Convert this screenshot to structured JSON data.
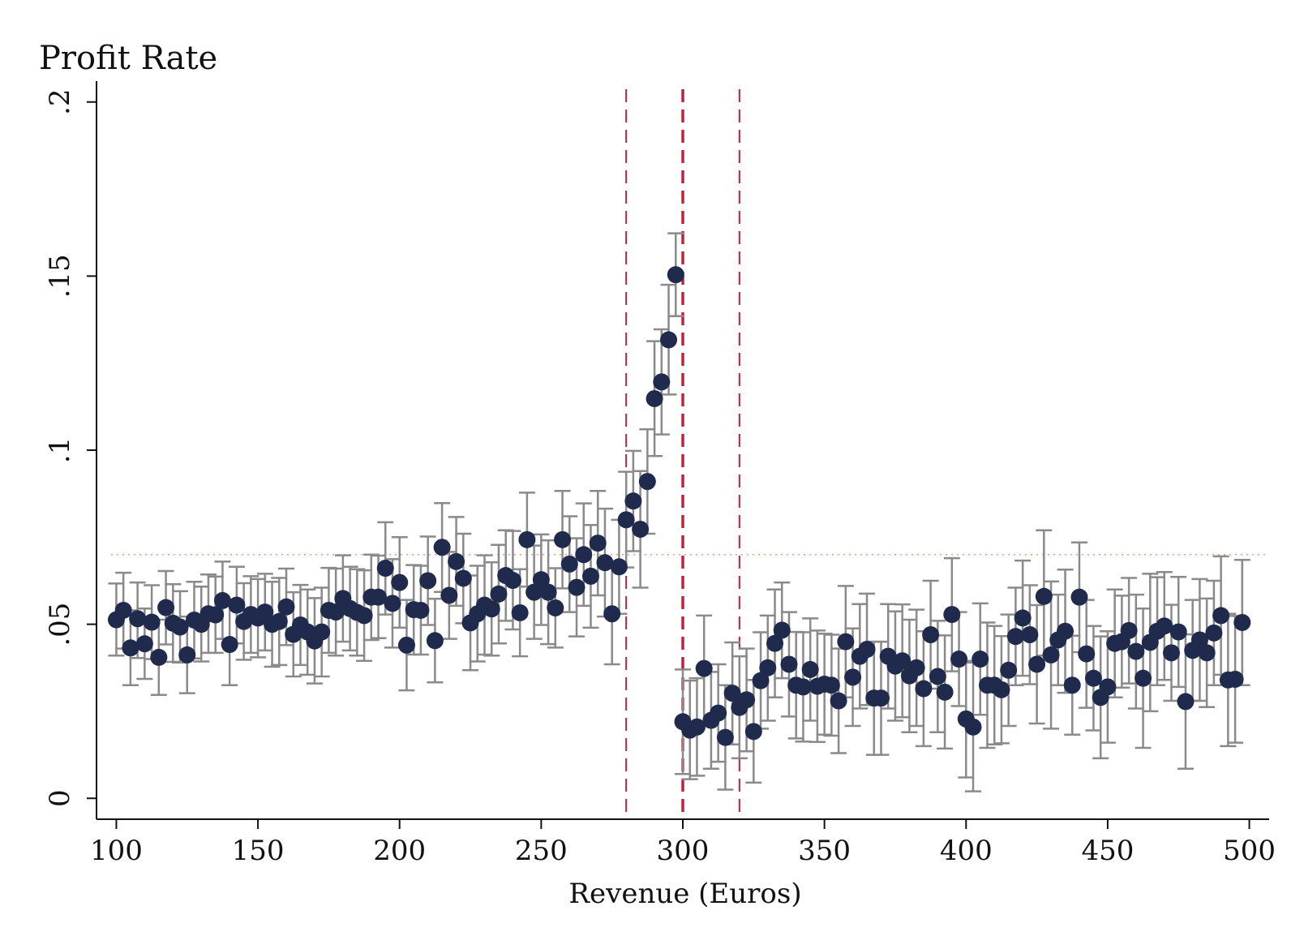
{
  "chart_data": {
    "type": "scatter",
    "title": "Profit Rate",
    "xlabel": "Revenue (Euros)",
    "ylabel": "",
    "xlim": [
      93,
      507
    ],
    "ylim": [
      -0.006,
      0.206
    ],
    "xticks": [
      100,
      150,
      200,
      250,
      300,
      350,
      400,
      450,
      500
    ],
    "xtick_labels": [
      "100",
      "150",
      "200",
      "250",
      "300",
      "350",
      "400",
      "450",
      "500"
    ],
    "yticks": [
      0,
      0.05,
      0.1,
      0.15,
      0.2
    ],
    "ytick_labels": [
      "0",
      ".05",
      ".1",
      ".15",
      ".2"
    ],
    "vertical_lines": [
      {
        "x": 280,
        "style": "dashed",
        "color": "#c0223b",
        "weight": "thin"
      },
      {
        "x": 300,
        "style": "dashed",
        "color": "#c0223b",
        "weight": "thick"
      },
      {
        "x": 320,
        "style": "dashed",
        "color": "#c0223b",
        "weight": "thin"
      }
    ],
    "reference_line": {
      "y": 0.07,
      "style": "dotted",
      "color": "#e8a07a"
    },
    "colors": {
      "points": "#1f2a4c",
      "error_bars": "#8a8a8a"
    },
    "series": [
      {
        "name": "Profit Rate",
        "x": [
          100,
          102.5,
          105,
          107.5,
          110,
          112.5,
          115,
          117.5,
          120,
          122.5,
          125,
          127.5,
          130,
          132.5,
          135,
          137.5,
          140,
          142.5,
          145,
          147.5,
          150,
          152.5,
          155,
          157.5,
          160,
          162.5,
          165,
          167.5,
          170,
          172.5,
          175,
          177.5,
          180,
          182.5,
          185,
          187.5,
          190,
          192.5,
          195,
          197.5,
          200,
          202.5,
          205,
          207.5,
          210,
          212.5,
          215,
          217.5,
          220,
          222.5,
          225,
          227.5,
          230,
          232.5,
          235,
          237.5,
          240,
          242.5,
          245,
          247.5,
          250,
          252.5,
          255,
          257.5,
          260,
          262.5,
          265,
          267.5,
          270,
          272.5,
          275,
          277.5,
          280,
          282.5,
          285,
          287.5,
          290,
          292.5,
          295,
          297.5,
          300,
          302.5,
          305,
          307.5,
          310,
          312.5,
          315,
          317.5,
          320,
          322.5,
          325,
          327.5,
          330,
          332.5,
          335,
          337.5,
          340,
          342.5,
          345,
          347.5,
          350,
          352.5,
          355,
          357.5,
          360,
          362.5,
          365,
          367.5,
          370,
          372.5,
          375,
          377.5,
          380,
          382.5,
          385,
          387.5,
          390,
          392.5,
          395,
          397.5,
          400,
          402.5,
          405,
          407.5,
          410,
          412.5,
          415,
          417.5,
          420,
          422.5,
          425,
          427.5,
          430,
          432.5,
          435,
          437.5,
          440,
          442.5,
          445,
          447.5,
          450,
          452.5,
          455,
          457.5,
          460,
          462.5,
          465,
          467.5,
          470,
          472.5,
          475,
          477.5,
          480,
          482.5,
          485,
          487.5,
          490,
          492.5,
          495,
          497.5
        ],
        "y": [
          0.0513,
          0.054,
          0.0432,
          0.0516,
          0.0444,
          0.0506,
          0.0405,
          0.0548,
          0.0503,
          0.0492,
          0.0412,
          0.0512,
          0.05,
          0.053,
          0.0527,
          0.0568,
          0.0442,
          0.0555,
          0.0508,
          0.0528,
          0.0518,
          0.0535,
          0.05,
          0.0508,
          0.055,
          0.0471,
          0.0498,
          0.0478,
          0.0452,
          0.0478,
          0.054,
          0.0535,
          0.0574,
          0.0545,
          0.0534,
          0.0525,
          0.0578,
          0.0578,
          0.0661,
          0.056,
          0.062,
          0.044,
          0.0542,
          0.054,
          0.0625,
          0.0453,
          0.0721,
          0.0583,
          0.068,
          0.0632,
          0.0504,
          0.053,
          0.0555,
          0.0544,
          0.0587,
          0.064,
          0.0626,
          0.0533,
          0.0743,
          0.0592,
          0.0628,
          0.0592,
          0.0547,
          0.0743,
          0.0673,
          0.0606,
          0.07,
          0.0638,
          0.0733,
          0.0677,
          0.053,
          0.0665,
          0.08,
          0.0854,
          0.0773,
          0.091,
          0.1148,
          0.1196,
          0.1317,
          0.1504,
          0.022,
          0.0196,
          0.0205,
          0.0373,
          0.0224,
          0.0245,
          0.0175,
          0.0302,
          0.0261,
          0.0283,
          0.0192,
          0.0338,
          0.0375,
          0.0445,
          0.0483,
          0.0385,
          0.0325,
          0.032,
          0.037,
          0.0322,
          0.0328,
          0.0325,
          0.028,
          0.045,
          0.0348,
          0.0408,
          0.0428,
          0.0288,
          0.0288,
          0.0408,
          0.038,
          0.0395,
          0.0352,
          0.0375,
          0.0315,
          0.047,
          0.035,
          0.0305,
          0.0528,
          0.04,
          0.0228,
          0.0205,
          0.04,
          0.0325,
          0.0325,
          0.0312,
          0.0368,
          0.0465,
          0.0518,
          0.047,
          0.0385,
          0.058,
          0.0412,
          0.0455,
          0.048,
          0.0325,
          0.0578,
          0.0415,
          0.0345,
          0.029,
          0.032,
          0.0445,
          0.045,
          0.0482,
          0.0422,
          0.0345,
          0.0448,
          0.048,
          0.0495,
          0.0418,
          0.0478,
          0.0278,
          0.0425,
          0.0455,
          0.0418,
          0.0475,
          0.0525,
          0.034,
          0.0342,
          0.0505
        ],
        "err_low": [
          0.041,
          0.043,
          0.0325,
          0.0403,
          0.0343,
          0.04,
          0.0297,
          0.0442,
          0.0392,
          0.039,
          0.0302,
          0.0402,
          0.0393,
          0.0418,
          0.0418,
          0.0458,
          0.0325,
          0.0445,
          0.0398,
          0.0418,
          0.0405,
          0.0425,
          0.0378,
          0.0383,
          0.044,
          0.035,
          0.0383,
          0.0355,
          0.033,
          0.035,
          0.0418,
          0.041,
          0.045,
          0.0425,
          0.041,
          0.0395,
          0.0455,
          0.046,
          0.0528,
          0.0433,
          0.049,
          0.031,
          0.0413,
          0.0413,
          0.0498,
          0.0333,
          0.0593,
          0.0458,
          0.0553,
          0.0503,
          0.0368,
          0.0393,
          0.0413,
          0.041,
          0.0445,
          0.051,
          0.0485,
          0.0408,
          0.0608,
          0.0458,
          0.0498,
          0.0443,
          0.0433,
          0.0603,
          0.0535,
          0.0465,
          0.0553,
          0.049,
          0.0583,
          0.0522,
          0.0385,
          0.053,
          0.0663,
          0.071,
          0.0605,
          0.076,
          0.0983,
          0.1045,
          0.116,
          0.1385,
          0.007,
          0.0055,
          0.0065,
          0.022,
          0.0085,
          0.0105,
          0.0025,
          0.0155,
          0.0115,
          0.0135,
          0.0045,
          0.02,
          0.0223,
          0.029,
          0.0345,
          0.0235,
          0.0172,
          0.0163,
          0.0223,
          0.0162,
          0.0183,
          0.018,
          0.013,
          0.029,
          0.0208,
          0.0258,
          0.0268,
          0.0125,
          0.0125,
          0.0258,
          0.0223,
          0.0233,
          0.019,
          0.0208,
          0.015,
          0.0315,
          0.019,
          0.0143,
          0.0365,
          0.0265,
          0.006,
          0.002,
          0.024,
          0.0145,
          0.0155,
          0.0158,
          0.0208,
          0.0325,
          0.0352,
          0.0328,
          0.0215,
          0.041,
          0.02,
          0.0325,
          0.0303,
          0.0183,
          0.042,
          0.026,
          0.0195,
          0.0115,
          0.016,
          0.029,
          0.0318,
          0.033,
          0.0258,
          0.0145,
          0.025,
          0.0325,
          0.034,
          0.028,
          0.032,
          0.0085,
          0.028,
          0.028,
          0.0262,
          0.0325,
          0.0355,
          0.015,
          0.016,
          0.0325
        ],
        "err_high": [
          0.0617,
          0.0648,
          0.054,
          0.062,
          0.0545,
          0.0612,
          0.0513,
          0.0653,
          0.0615,
          0.0595,
          0.0522,
          0.0622,
          0.0608,
          0.0643,
          0.0637,
          0.068,
          0.056,
          0.0665,
          0.0618,
          0.0638,
          0.063,
          0.0645,
          0.0622,
          0.0633,
          0.066,
          0.0592,
          0.0613,
          0.06,
          0.0575,
          0.0605,
          0.0662,
          0.066,
          0.0698,
          0.0665,
          0.0658,
          0.0655,
          0.07,
          0.0697,
          0.0793,
          0.0687,
          0.075,
          0.057,
          0.067,
          0.0668,
          0.0752,
          0.0573,
          0.0848,
          0.0708,
          0.0808,
          0.076,
          0.064,
          0.0668,
          0.0698,
          0.0678,
          0.0728,
          0.077,
          0.0768,
          0.0658,
          0.0878,
          0.0726,
          0.0758,
          0.0741,
          0.0661,
          0.0883,
          0.081,
          0.0747,
          0.0847,
          0.0785,
          0.0883,
          0.0832,
          0.0675,
          0.08,
          0.0938,
          0.0998,
          0.094,
          0.106,
          0.1313,
          0.1347,
          0.1475,
          0.1623,
          0.037,
          0.0338,
          0.0345,
          0.0525,
          0.0363,
          0.0385,
          0.0325,
          0.0448,
          0.0408,
          0.043,
          0.034,
          0.0477,
          0.0525,
          0.06,
          0.062,
          0.0535,
          0.0478,
          0.0477,
          0.0517,
          0.0482,
          0.0473,
          0.047,
          0.043,
          0.061,
          0.0488,
          0.0558,
          0.0588,
          0.045,
          0.045,
          0.0558,
          0.0537,
          0.0557,
          0.0513,
          0.0542,
          0.048,
          0.0625,
          0.051,
          0.0468,
          0.069,
          0.0535,
          0.0395,
          0.039,
          0.056,
          0.0505,
          0.0495,
          0.0466,
          0.0528,
          0.0605,
          0.0683,
          0.0612,
          0.0555,
          0.077,
          0.0623,
          0.0585,
          0.0657,
          0.0467,
          0.0735,
          0.057,
          0.0495,
          0.0465,
          0.048,
          0.06,
          0.0582,
          0.0633,
          0.0585,
          0.0545,
          0.0645,
          0.0635,
          0.065,
          0.0556,
          0.0636,
          0.0471,
          0.057,
          0.063,
          0.0574,
          0.0625,
          0.0695,
          0.053,
          0.0524,
          0.0685
        ]
      }
    ]
  }
}
